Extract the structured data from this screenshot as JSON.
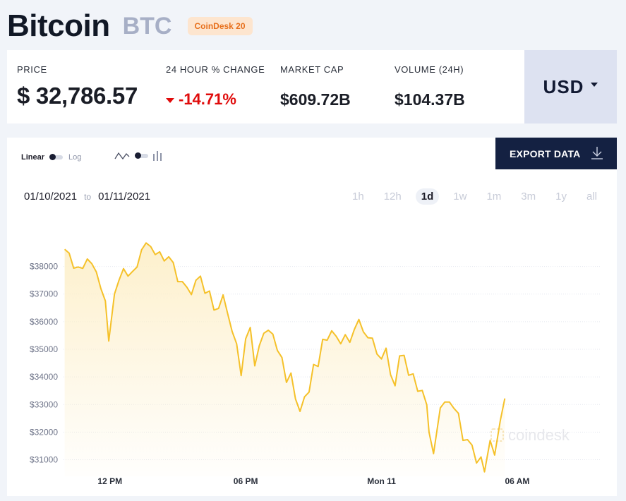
{
  "header": {
    "name": "Bitcoin",
    "symbol": "BTC",
    "badge": "CoinDesk 20"
  },
  "stats": {
    "price_label": "PRICE",
    "price_value": "$ 32,786.57",
    "change_label": "24 HOUR % CHANGE",
    "change_value": "-14.71%",
    "mcap_label": "MARKET CAP",
    "mcap_value": "$609.72B",
    "volume_label": "VOLUME (24H)",
    "volume_value": "$104.37B",
    "currency": "USD"
  },
  "chart_controls": {
    "linear_label": "Linear",
    "log_label": "Log",
    "export_label": "EXPORT DATA",
    "date_from": "01/10/2021",
    "date_to_word": "to",
    "date_to": "01/11/2021",
    "ranges": [
      "1h",
      "12h",
      "1d",
      "1w",
      "1m",
      "3m",
      "1y",
      "all"
    ],
    "active_range": "1d",
    "watermark": "coindesk"
  },
  "colors": {
    "line": "#f5c12a",
    "fill_top": "#fdf0cc",
    "negative": "#e00b0b",
    "export_bg": "#142142"
  },
  "chart_data": {
    "type": "area",
    "x_tick_labels": [
      "12 PM",
      "06 PM",
      "Mon 11",
      "06 AM"
    ],
    "x_tick_positions": [
      2,
      8,
      14,
      20
    ],
    "x_range": [
      -0.05,
      23.65
    ],
    "y_tick_labels": [
      "$31000",
      "$32000",
      "$33000",
      "$34000",
      "$35000",
      "$36000",
      "$37000",
      "$38000"
    ],
    "y_ticks": [
      31000,
      32000,
      33000,
      34000,
      35000,
      36000,
      37000,
      38000
    ],
    "ylim": [
      30400,
      39600
    ],
    "grid": true,
    "series": [
      {
        "values": [
          [
            0.0,
            38620
          ],
          [
            0.2,
            38480
          ],
          [
            0.4,
            37940
          ],
          [
            0.6,
            37980
          ],
          [
            0.8,
            37930
          ],
          [
            1.0,
            38270
          ],
          [
            1.2,
            38100
          ],
          [
            1.4,
            37800
          ],
          [
            1.6,
            37200
          ],
          [
            1.8,
            36750
          ],
          [
            1.95,
            35300
          ],
          [
            2.2,
            37000
          ],
          [
            2.4,
            37500
          ],
          [
            2.6,
            37920
          ],
          [
            2.8,
            37650
          ],
          [
            3.0,
            37820
          ],
          [
            3.2,
            37980
          ],
          [
            3.4,
            38600
          ],
          [
            3.6,
            38850
          ],
          [
            3.8,
            38720
          ],
          [
            4.0,
            38430
          ],
          [
            4.2,
            38530
          ],
          [
            4.4,
            38200
          ],
          [
            4.6,
            38350
          ],
          [
            4.8,
            38140
          ],
          [
            5.0,
            37450
          ],
          [
            5.2,
            37450
          ],
          [
            5.4,
            37250
          ],
          [
            5.6,
            36980
          ],
          [
            5.8,
            37500
          ],
          [
            6.0,
            37650
          ],
          [
            6.2,
            37030
          ],
          [
            6.4,
            37110
          ],
          [
            6.6,
            36420
          ],
          [
            6.8,
            36480
          ],
          [
            7.0,
            36970
          ],
          [
            7.2,
            36300
          ],
          [
            7.4,
            35650
          ],
          [
            7.6,
            35200
          ],
          [
            7.8,
            34050
          ],
          [
            8.0,
            35380
          ],
          [
            8.2,
            35790
          ],
          [
            8.4,
            34400
          ],
          [
            8.6,
            35130
          ],
          [
            8.8,
            35580
          ],
          [
            9.0,
            35690
          ],
          [
            9.2,
            35550
          ],
          [
            9.4,
            34960
          ],
          [
            9.6,
            34700
          ],
          [
            9.8,
            33800
          ],
          [
            10.0,
            34140
          ],
          [
            10.2,
            33200
          ],
          [
            10.4,
            32750
          ],
          [
            10.6,
            33280
          ],
          [
            10.8,
            33450
          ],
          [
            11.0,
            34450
          ],
          [
            11.2,
            34380
          ],
          [
            11.4,
            35360
          ],
          [
            11.6,
            35330
          ],
          [
            11.8,
            35670
          ],
          [
            12.0,
            35470
          ],
          [
            12.2,
            35200
          ],
          [
            12.4,
            35530
          ],
          [
            12.6,
            35250
          ],
          [
            12.8,
            35720
          ],
          [
            13.0,
            36080
          ],
          [
            13.2,
            35630
          ],
          [
            13.4,
            35420
          ],
          [
            13.6,
            35400
          ],
          [
            13.8,
            34830
          ],
          [
            14.0,
            34650
          ],
          [
            14.2,
            35040
          ],
          [
            14.4,
            34080
          ],
          [
            14.6,
            33680
          ],
          [
            14.8,
            34760
          ],
          [
            15.0,
            34780
          ],
          [
            15.2,
            34060
          ],
          [
            15.4,
            34110
          ],
          [
            15.6,
            33480
          ],
          [
            15.8,
            33510
          ],
          [
            16.0,
            32990
          ],
          [
            16.1,
            32000
          ],
          [
            16.3,
            31220
          ],
          [
            16.6,
            32880
          ],
          [
            16.8,
            33090
          ],
          [
            17.0,
            33090
          ],
          [
            17.2,
            32860
          ],
          [
            17.4,
            32680
          ],
          [
            17.6,
            31700
          ],
          [
            17.8,
            31730
          ],
          [
            18.0,
            31530
          ],
          [
            18.2,
            30880
          ],
          [
            18.4,
            31100
          ],
          [
            18.55,
            30560
          ],
          [
            18.8,
            31700
          ],
          [
            19.0,
            31170
          ],
          [
            19.25,
            32420
          ],
          [
            19.45,
            33220
          ]
        ]
      }
    ]
  }
}
